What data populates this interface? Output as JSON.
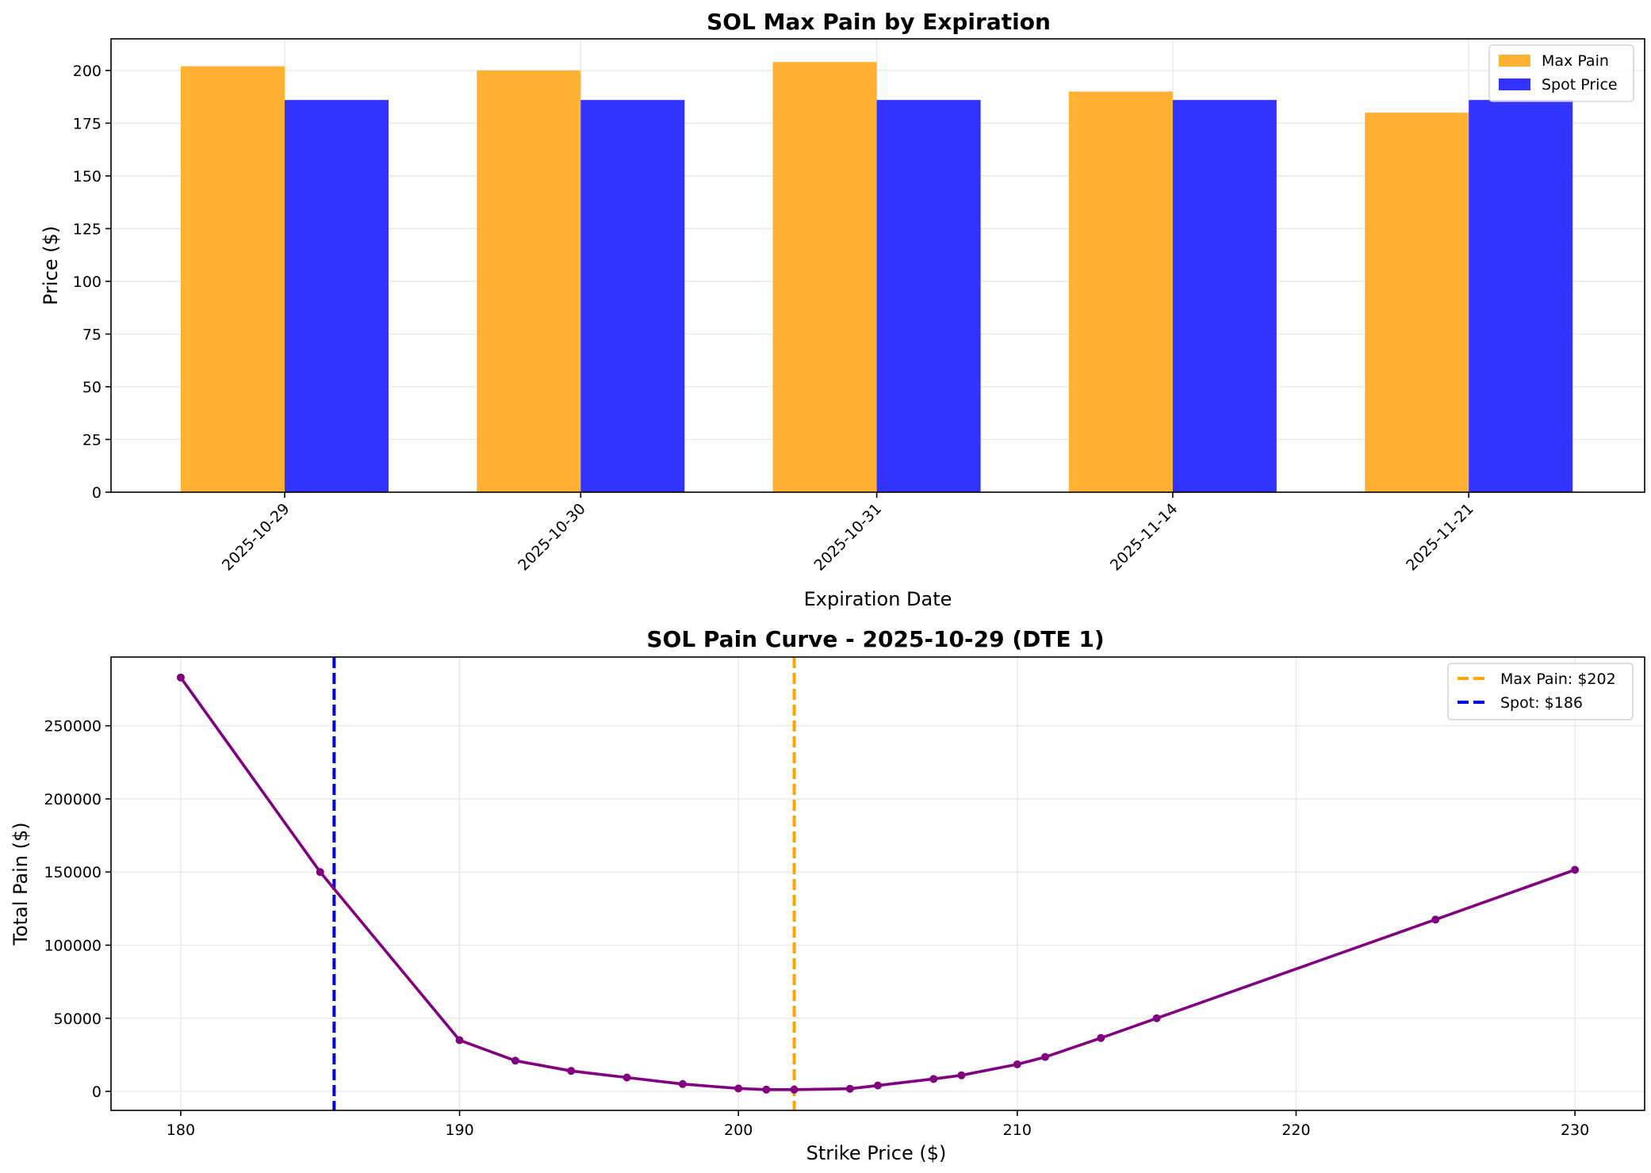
{
  "chart_data": [
    {
      "type": "bar",
      "title": "SOL Max Pain by Expiration",
      "xlabel": "Expiration Date",
      "ylabel": "Price ($)",
      "categories": [
        "2025-10-29",
        "2025-10-30",
        "2025-10-31",
        "2025-11-14",
        "2025-11-21"
      ],
      "series": [
        {
          "name": "Max Pain",
          "values": [
            202,
            200,
            204,
            190,
            180
          ],
          "color": "#ffb133"
        },
        {
          "name": "Spot Price",
          "values": [
            186,
            186,
            186,
            186,
            186
          ],
          "color": "#3333ff"
        }
      ],
      "ylim": [
        0,
        215
      ],
      "yticks": [
        0,
        25,
        50,
        75,
        100,
        125,
        150,
        175,
        200
      ],
      "grid": true,
      "legend": "top-right"
    },
    {
      "type": "line",
      "title": "SOL Pain Curve - 2025-10-29 (DTE 1)",
      "xlabel": "Strike Price ($)",
      "ylabel": "Total Pain ($)",
      "xlim": [
        177.5,
        232.5
      ],
      "ylim": [
        -13000,
        297000
      ],
      "xticks": [
        180,
        190,
        200,
        210,
        220,
        230
      ],
      "yticks": [
        0,
        50000,
        100000,
        150000,
        200000,
        250000
      ],
      "series": [
        {
          "color": "#800080",
          "x": [
            180,
            185,
            190,
            192,
            194,
            196,
            198,
            200,
            201,
            202,
            204,
            205,
            207,
            208,
            210,
            211,
            213,
            215,
            225,
            230
          ],
          "y": [
            283000,
            150000,
            35000,
            21000,
            14000,
            9500,
            5000,
            2000,
            1200,
            1200,
            1800,
            4000,
            8500,
            11000,
            18500,
            23500,
            36500,
            50000,
            117500,
            151500
          ]
        }
      ],
      "vlines": [
        {
          "label": "Max Pain: $202",
          "x": 202,
          "color": "#ffa500",
          "style": "dashed"
        },
        {
          "label": "Spot: $186",
          "x": 185.5,
          "color": "#0000dd",
          "style": "dashed"
        }
      ],
      "grid": true,
      "legend": "top-right"
    }
  ]
}
